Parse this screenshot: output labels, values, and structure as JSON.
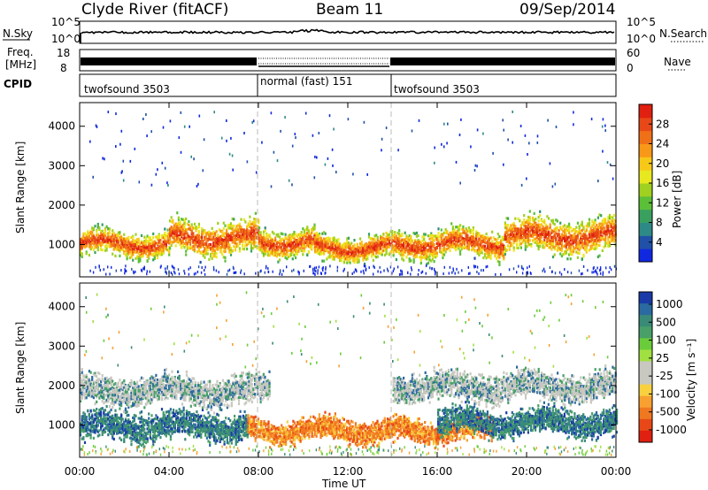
{
  "header": {
    "station": "Clyde River (fitACF)",
    "beam": "Beam 11",
    "date": "09/Sep/2014"
  },
  "nsky_panel": {
    "left_label": "N.Sky",
    "right_label": "N.Search",
    "y_ticks": [
      "10^5",
      "10^0"
    ],
    "right_ticks": [
      "10^5",
      "10^0"
    ]
  },
  "freq_panel": {
    "left_label_1": "Freq.",
    "left_label_2": "[MHz]",
    "y_ticks": [
      "18",
      "8"
    ],
    "right_label": "Nave",
    "right_ticks": [
      "60",
      "0"
    ]
  },
  "cpid_panel": {
    "label": "CPID",
    "segments": [
      {
        "name": "twofsound 3503",
        "start_h": 0,
        "end_h": 8
      },
      {
        "name": "normal (fast) 151",
        "start_h": 8,
        "end_h": 14
      },
      {
        "name": "twofsound 3503",
        "start_h": 14,
        "end_h": 24
      }
    ]
  },
  "x_axis": {
    "label": "Time UT",
    "tick_labels": [
      "00:00",
      "04:00",
      "08:00",
      "12:00",
      "16:00",
      "20:00",
      "00:00"
    ],
    "tick_hours": [
      0,
      4,
      8,
      12,
      16,
      20,
      24
    ],
    "range_h": [
      0,
      24
    ]
  },
  "chart_data": [
    {
      "type": "heatmap",
      "title": "",
      "xlabel": "Time UT",
      "ylabel": "Slant Range [km]",
      "xlim": [
        0,
        24
      ],
      "ylim": [
        180,
        4600
      ],
      "y_tick_labels": [
        "1000",
        "2000",
        "3000",
        "4000"
      ],
      "y_ticks": [
        1000,
        2000,
        3000,
        4000
      ],
      "colorbar": {
        "label": "Power [dB]",
        "tick_labels": [
          "28",
          "24",
          "20",
          "16",
          "12",
          "8",
          "4"
        ],
        "ticks": [
          28,
          24,
          20,
          16,
          12,
          8,
          4
        ],
        "range": [
          0,
          32
        ],
        "colors": [
          "#1028e0",
          "#2050a8",
          "#2e8a86",
          "#3aa060",
          "#5cbf38",
          "#a0d020",
          "#e8e820",
          "#f8c818",
          "#f89818",
          "#f07018",
          "#e84818",
          "#e02010"
        ]
      },
      "scatter_bands": [
        {
          "start_h": 0.0,
          "end_h": 4.0,
          "center_km": 1050,
          "width_km": 430
        },
        {
          "start_h": 4.0,
          "end_h": 8.0,
          "center_km": 1200,
          "width_km": 600
        },
        {
          "start_h": 8.0,
          "end_h": 10.5,
          "center_km": 1100,
          "width_km": 450
        },
        {
          "start_h": 10.5,
          "end_h": 14.0,
          "center_km": 950,
          "width_km": 420
        },
        {
          "start_h": 14.0,
          "end_h": 19.0,
          "center_km": 1050,
          "width_km": 480
        },
        {
          "start_h": 19.0,
          "end_h": 24.0,
          "center_km": 1250,
          "width_km": 600
        }
      ]
    },
    {
      "type": "heatmap",
      "title": "",
      "xlabel": "Time UT",
      "ylabel": "Slant Range [km]",
      "xlim": [
        0,
        24
      ],
      "ylim": [
        180,
        4600
      ],
      "y_tick_labels": [
        "1000",
        "2000",
        "3000",
        "4000"
      ],
      "y_ticks": [
        1000,
        2000,
        3000,
        4000
      ],
      "colorbar": {
        "label": "Velocity [m s⁻¹]",
        "tick_labels": [
          "1000",
          "500",
          "100",
          "25",
          "-25",
          "-100",
          "-500",
          "-1000"
        ],
        "ticks": [
          1000,
          500,
          100,
          25,
          -25,
          -100,
          -500,
          -1000
        ],
        "colors": [
          "#1a3aa8",
          "#2a6aa0",
          "#3a8a78",
          "#48a068",
          "#6acc3a",
          "#a0e040",
          "#c8c8c0",
          "#c8c8c0",
          "#f8d040",
          "#f8a030",
          "#f07820",
          "#e84818",
          "#e02010"
        ]
      },
      "scatter_bands": [
        {
          "start_h": 0.0,
          "end_h": 7.5,
          "center_km": 1000,
          "width_km": 500,
          "tone": "green"
        },
        {
          "start_h": 0.0,
          "end_h": 8.5,
          "center_km": 1900,
          "width_km": 500,
          "tone": "grey"
        },
        {
          "start_h": 7.5,
          "end_h": 14.5,
          "center_km": 900,
          "width_km": 400,
          "tone": "orange"
        },
        {
          "start_h": 14.5,
          "end_h": 18.5,
          "center_km": 900,
          "width_km": 400,
          "tone": "orange"
        },
        {
          "start_h": 16.0,
          "end_h": 24.0,
          "center_km": 1100,
          "width_km": 450,
          "tone": "green"
        },
        {
          "start_h": 14.0,
          "end_h": 24.0,
          "center_km": 2000,
          "width_km": 500,
          "tone": "grey"
        }
      ]
    }
  ]
}
